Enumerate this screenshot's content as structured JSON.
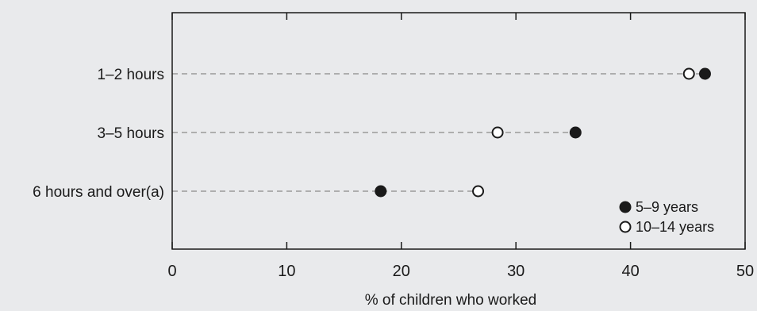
{
  "chart_data": {
    "type": "dot",
    "categories": [
      "1–2 hours",
      "3–5 hours",
      "6 hours and over(a)"
    ],
    "series": [
      {
        "name": "5–9 years",
        "values": [
          46.5,
          35.2,
          18.2
        ]
      },
      {
        "name": "10–14 years",
        "values": [
          45.1,
          28.4,
          26.7
        ]
      }
    ],
    "xlabel": "% of children who worked",
    "xlim": [
      0,
      50
    ],
    "xticks": [
      "0",
      "10",
      "20",
      "30",
      "40",
      "50"
    ],
    "grid": false,
    "legend_position": "bottom-right",
    "colors": {
      "background": "#e9eaec",
      "filled": "#1a1a1a",
      "hollow": "#ffffff",
      "guide": "#9a9a9a",
      "axis": "#1a1a1a"
    }
  }
}
